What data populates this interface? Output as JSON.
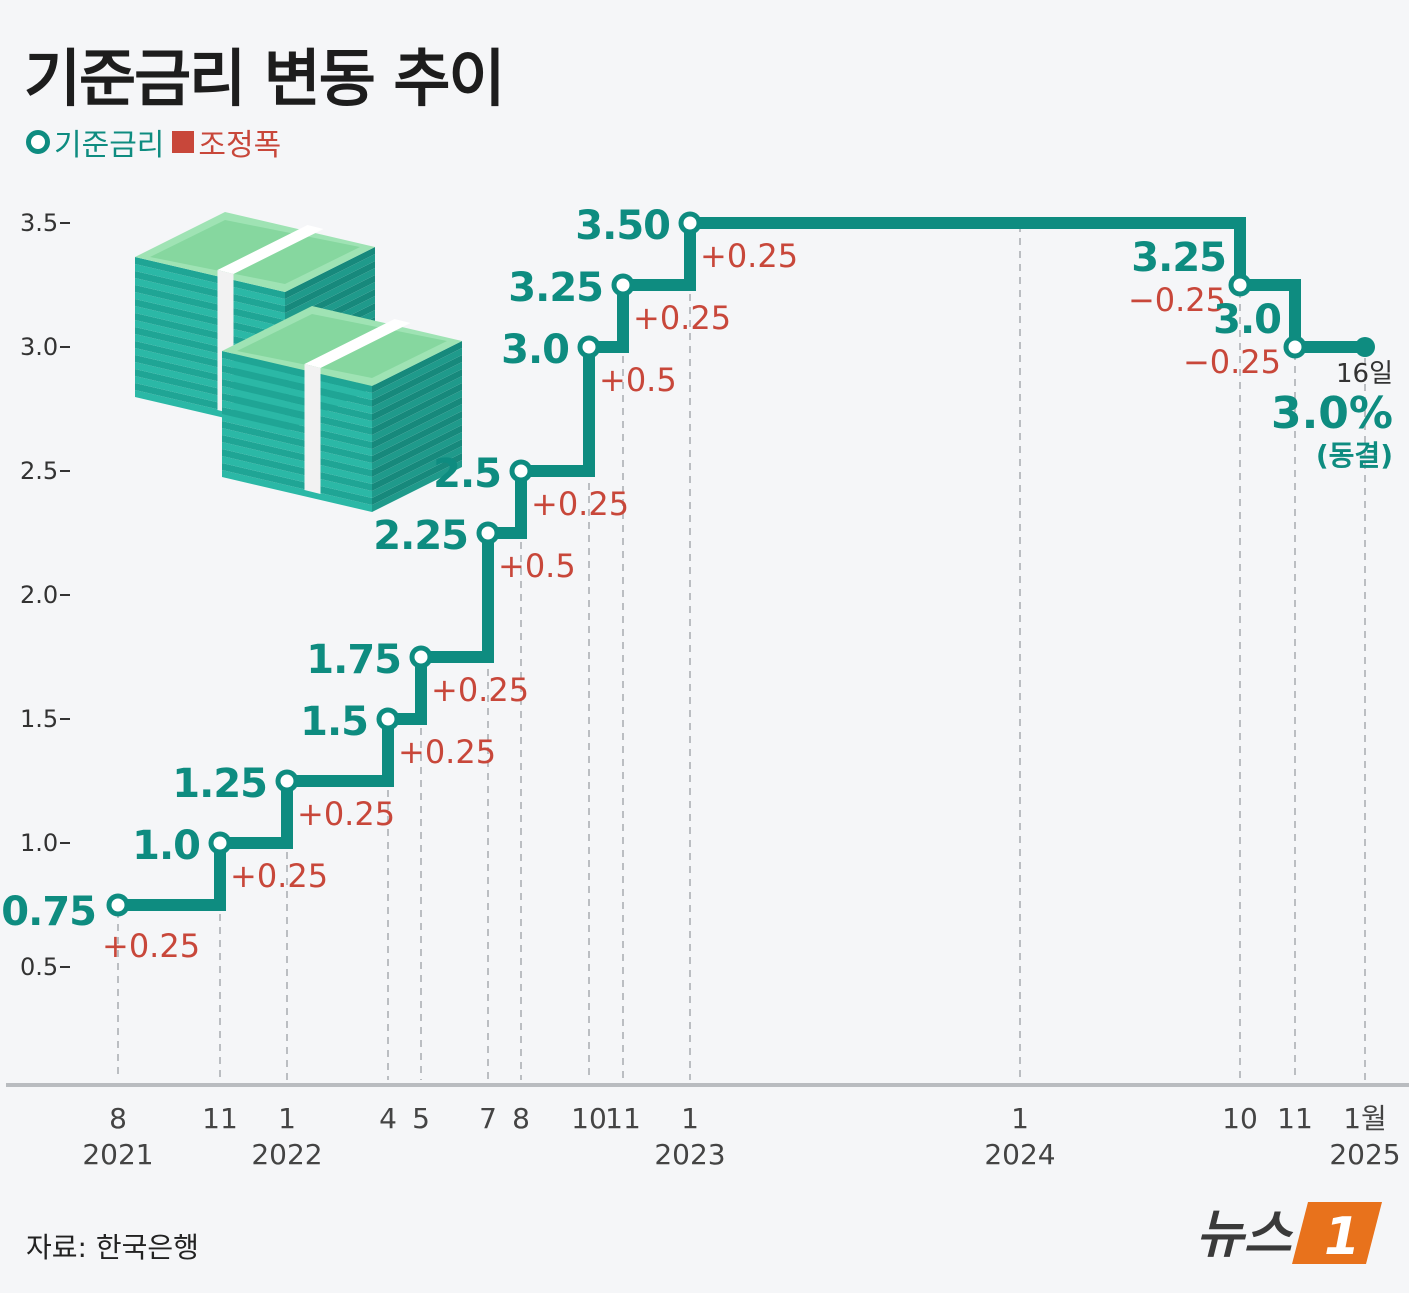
{
  "title": "기준금리 변동 추이",
  "legend": {
    "rate_label": "기준금리",
    "change_label": "조정폭",
    "rate_color": "#0e8c80",
    "change_color": "#c8473a"
  },
  "source": "자료: 한국은행",
  "logo_text": "뉴스1",
  "chart_data": {
    "type": "line",
    "step": true,
    "title": "기준금리 변동 추이",
    "xlabel": "",
    "ylabel": "",
    "ylim": [
      0.5,
      3.5
    ],
    "yticks": [
      "0.5",
      "1.0",
      "1.5",
      "2.0",
      "2.5",
      "3.0",
      "3.5"
    ],
    "grid": "vertical dashed lines at each change date",
    "legend_position": "top-left",
    "series": [
      {
        "name": "기준금리",
        "color": "#0e8c80"
      },
      {
        "name": "조정폭",
        "color": "#c8473a"
      }
    ],
    "points": [
      {
        "date": "2021-08",
        "rate": 0.75,
        "rate_label": "0.75",
        "change": "+0.25"
      },
      {
        "date": "2021-11",
        "rate": 1.0,
        "rate_label": "1.0",
        "change": "+0.25"
      },
      {
        "date": "2022-01",
        "rate": 1.25,
        "rate_label": "1.25",
        "change": "+0.25"
      },
      {
        "date": "2022-04",
        "rate": 1.5,
        "rate_label": "1.5",
        "change": "+0.25"
      },
      {
        "date": "2022-05",
        "rate": 1.75,
        "rate_label": "1.75",
        "change": "+0.25"
      },
      {
        "date": "2022-07",
        "rate": 2.25,
        "rate_label": "2.25",
        "change": "+0.5"
      },
      {
        "date": "2022-08",
        "rate": 2.5,
        "rate_label": "2.5",
        "change": "+0.25"
      },
      {
        "date": "2022-10",
        "rate": 3.0,
        "rate_label": "3.0",
        "change": "+0.5"
      },
      {
        "date": "2022-11",
        "rate": 3.25,
        "rate_label": "3.25",
        "change": "+0.25"
      },
      {
        "date": "2023-01",
        "rate": 3.5,
        "rate_label": "3.50",
        "change": "+0.25"
      },
      {
        "date": "2024-10",
        "rate": 3.25,
        "rate_label": "3.25",
        "change": "−0.25"
      },
      {
        "date": "2024-11",
        "rate": 3.0,
        "rate_label": "3.0",
        "change": "−0.25"
      }
    ],
    "final_point": {
      "date": "2025-01-16",
      "rate": 3.0,
      "day_label": "16일",
      "value_label": "3.0%",
      "status_label": "(동결)"
    },
    "x_ticks": [
      {
        "date": "2021-08",
        "label": "8",
        "year": "2021"
      },
      {
        "date": "2021-11",
        "label": "11",
        "year": ""
      },
      {
        "date": "2022-01",
        "label": "1",
        "year": "2022"
      },
      {
        "date": "2022-04",
        "label": "4",
        "year": ""
      },
      {
        "date": "2022-05",
        "label": "5",
        "year": ""
      },
      {
        "date": "2022-07",
        "label": "7",
        "year": ""
      },
      {
        "date": "2022-08",
        "label": "8",
        "year": ""
      },
      {
        "date": "2022-10",
        "label": "10",
        "year": ""
      },
      {
        "date": "2022-11",
        "label": "11",
        "year": ""
      },
      {
        "date": "2023-01",
        "label": "1",
        "year": "2023"
      },
      {
        "date": "2024-01",
        "label": "1",
        "year": "2024"
      },
      {
        "date": "2024-10",
        "label": "10",
        "year": ""
      },
      {
        "date": "2024-11",
        "label": "11",
        "year": ""
      },
      {
        "date": "2025-01",
        "label": "1월",
        "year": "2025"
      }
    ]
  }
}
